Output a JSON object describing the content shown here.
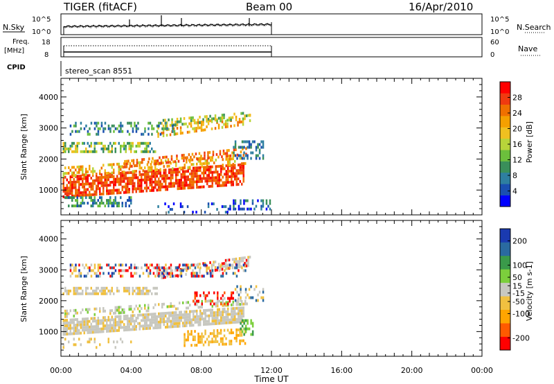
{
  "header": {
    "title": "TIGER (fitACF)",
    "beam": "Beam 00",
    "date": "16/Apr/2010"
  },
  "params": {
    "nsky_label": "N.Sky",
    "nsearch_label": "N.Search",
    "nsky_ticks": [
      "10^5",
      "10^0"
    ],
    "nsearch_ticks": [
      "10^5",
      "10^0"
    ],
    "freq_label_line1": "Freq.",
    "freq_label_line2": "[MHz]",
    "freq_ticks": [
      "18",
      "8"
    ],
    "nave_label": "Nave",
    "nave_ticks": [
      "60",
      "0"
    ],
    "cpid_label": "CPID",
    "cpid_text": "stereo_scan 8551"
  },
  "colors": {
    "power": [
      "#0000ff",
      "#1a4fb0",
      "#2e7fa0",
      "#3a8f5a",
      "#6cbf3c",
      "#b8d43a",
      "#f0c020",
      "#f5a000",
      "#f07000",
      "#f03a10",
      "#ff0000"
    ],
    "velocity": [
      "#ff0000",
      "#ff5a00",
      "#ffa500",
      "#f0c040",
      "#c8c8c0",
      "#7ccf3c",
      "#3a9a4a",
      "#2a6aa0",
      "#1a3ab0"
    ]
  },
  "chart_data": [
    {
      "type": "heatmap",
      "ylabel": "Slant Range [km]",
      "yticks": [
        "1000",
        "2000",
        "3000",
        "4000"
      ],
      "ylim": [
        200,
        4600
      ],
      "xlim": [
        "00:00",
        "24:00"
      ],
      "colorbar": {
        "label": "Power [dB]",
        "ticks": [
          "4",
          "8",
          "12",
          "16",
          "20",
          "24",
          "28"
        ],
        "range": [
          0,
          32
        ]
      },
      "data_extent": {
        "x_start_hours": 0,
        "x_end_hours": 12
      }
    },
    {
      "type": "heatmap",
      "ylabel": "Slant Range [km]",
      "yticks": [
        "1000",
        "2000",
        "3000",
        "4000"
      ],
      "ylim": [
        200,
        4600
      ],
      "xlim": [
        "00:00",
        "24:00"
      ],
      "xlabel": "Time UT",
      "xticks": [
        "00:00",
        "04:00",
        "08:00",
        "12:00",
        "16:00",
        "20:00",
        "00:00"
      ],
      "colorbar": {
        "label": "Velocity [m s-1]",
        "ticks": [
          "-200",
          "-100",
          "-50",
          "-15",
          "15",
          "50",
          "100",
          "200"
        ],
        "range": [
          -250,
          250
        ]
      },
      "data_extent": {
        "x_start_hours": 0,
        "x_end_hours": 12
      }
    }
  ]
}
